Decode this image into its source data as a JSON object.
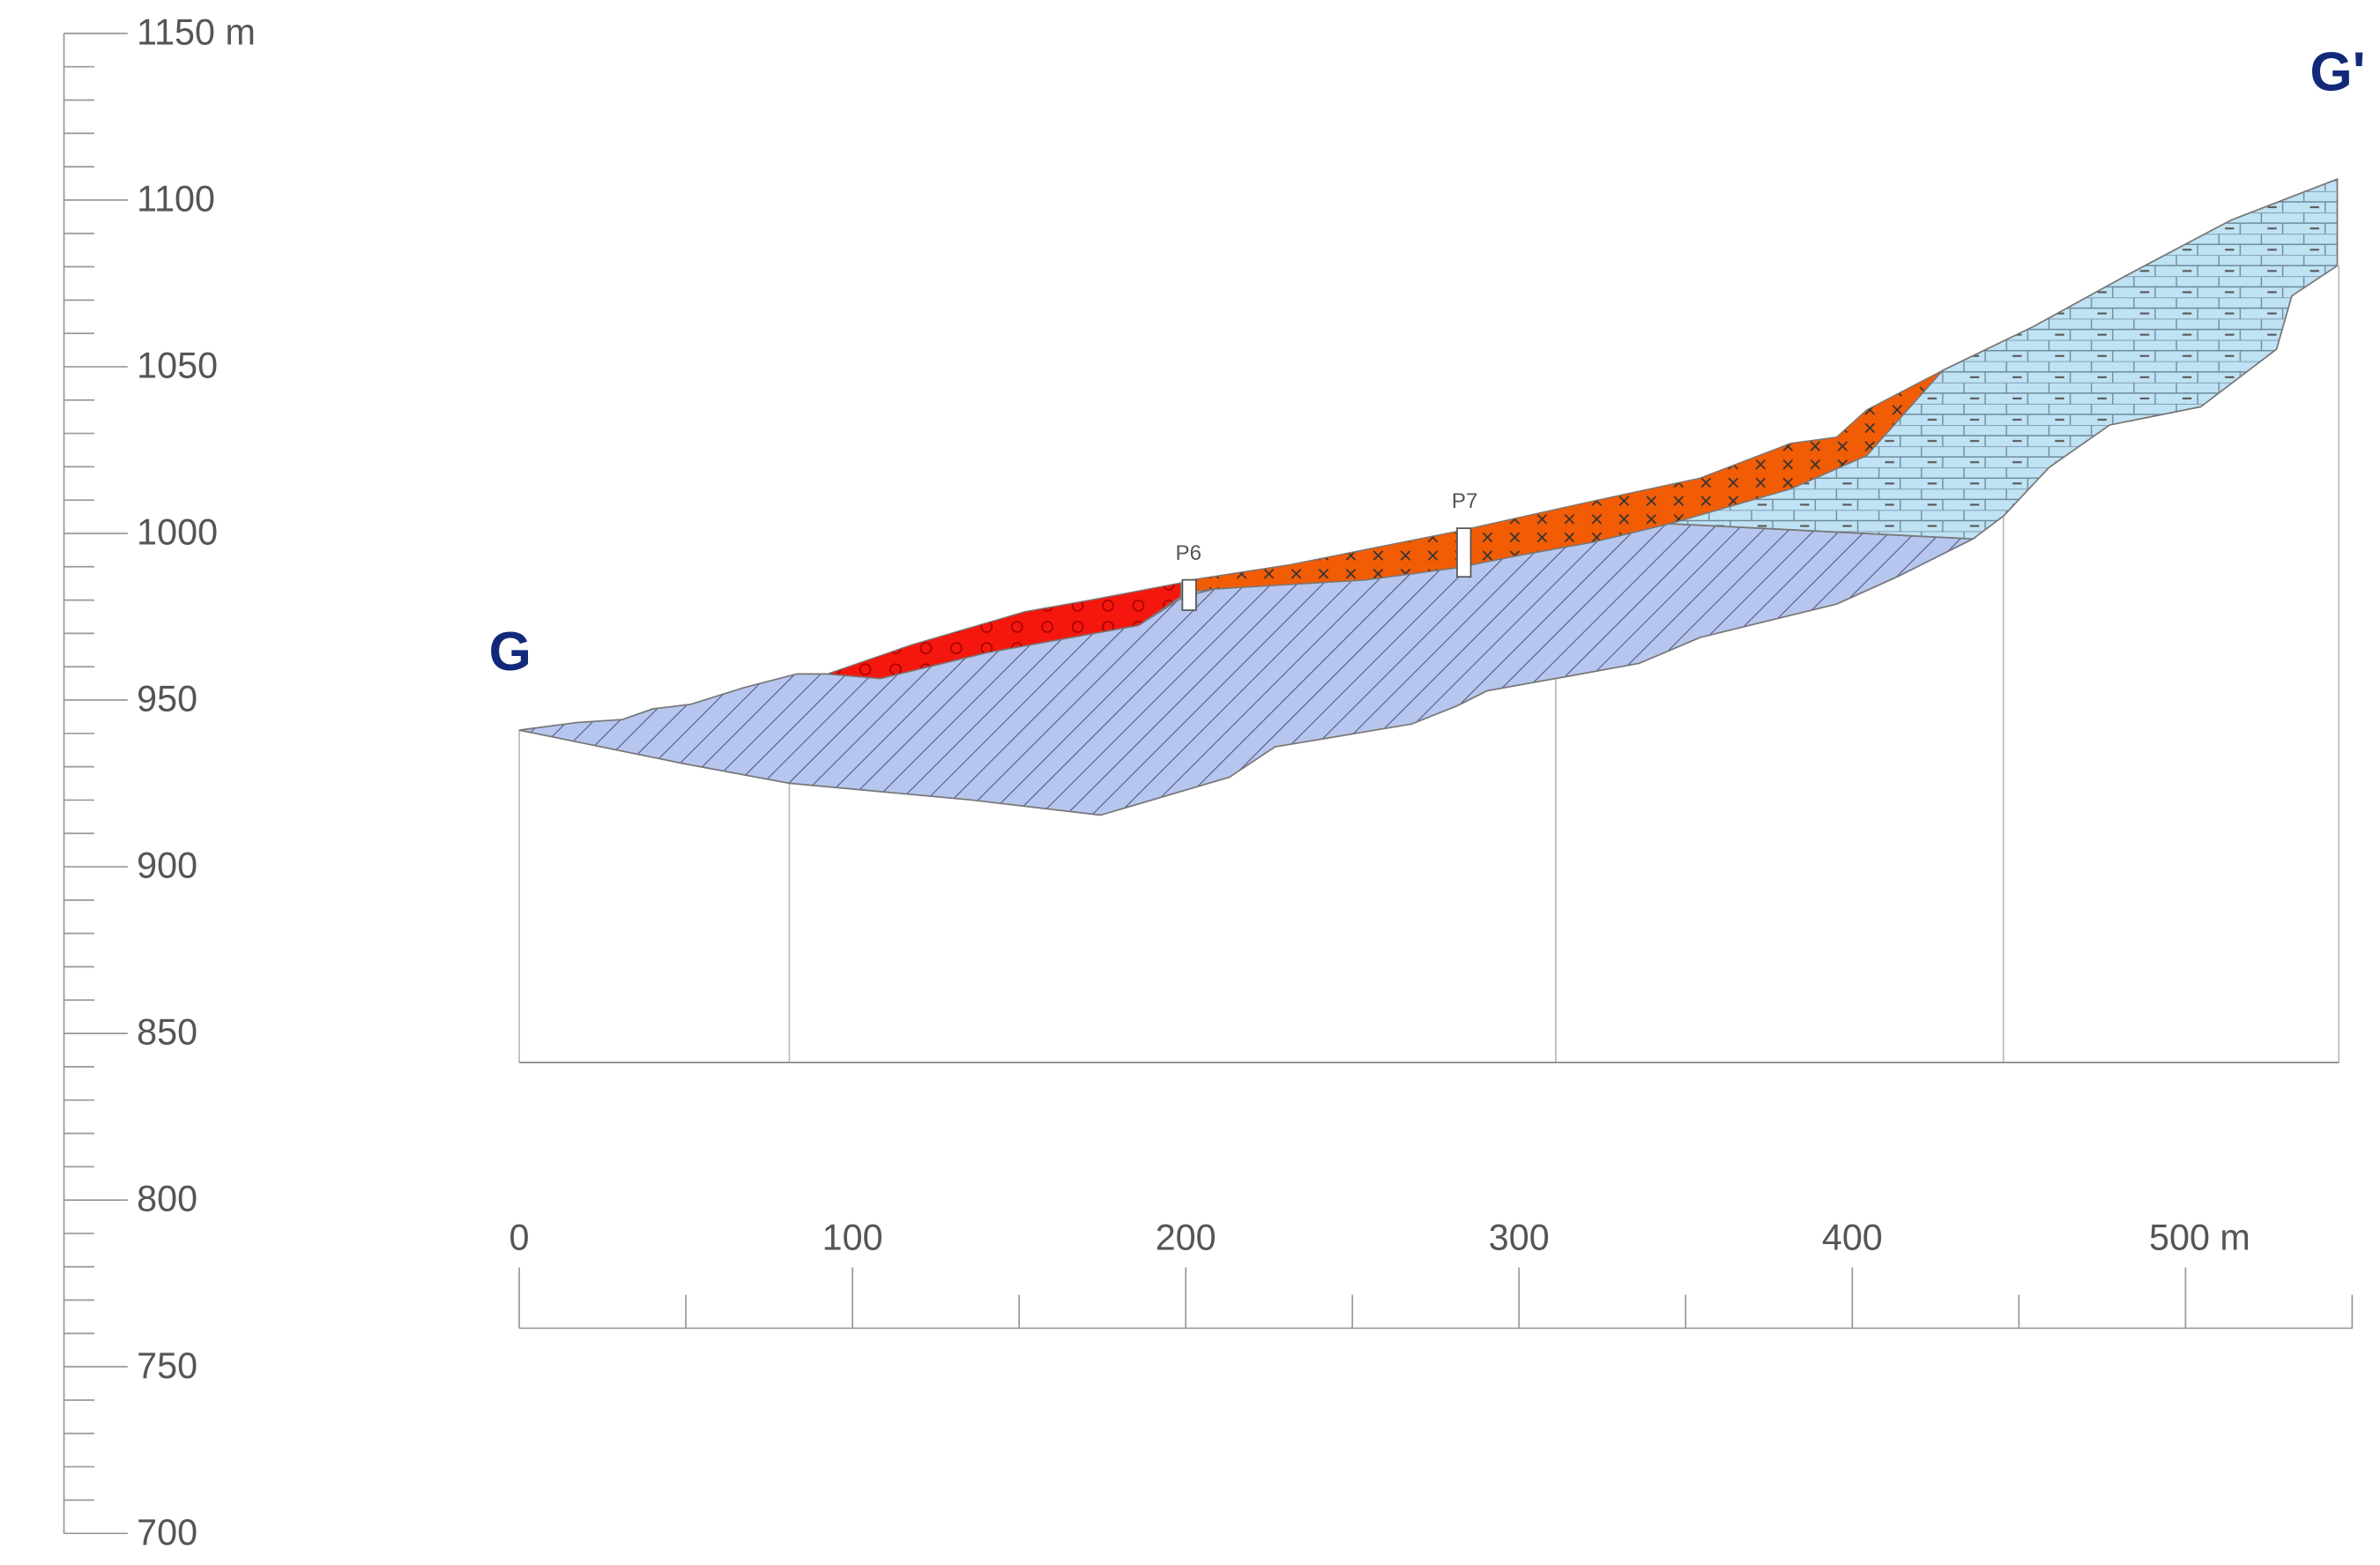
{
  "y_axis": {
    "labels": [
      "1150 m",
      "1100",
      "1050",
      "1000",
      "950",
      "900",
      "850",
      "800",
      "750",
      "700"
    ]
  },
  "x_axis": {
    "labels": [
      "0",
      "100",
      "200",
      "300",
      "400",
      "500 m"
    ]
  },
  "section": {
    "start": "G",
    "end": "G'"
  },
  "boreholes": [
    "P6",
    "P7"
  ]
}
